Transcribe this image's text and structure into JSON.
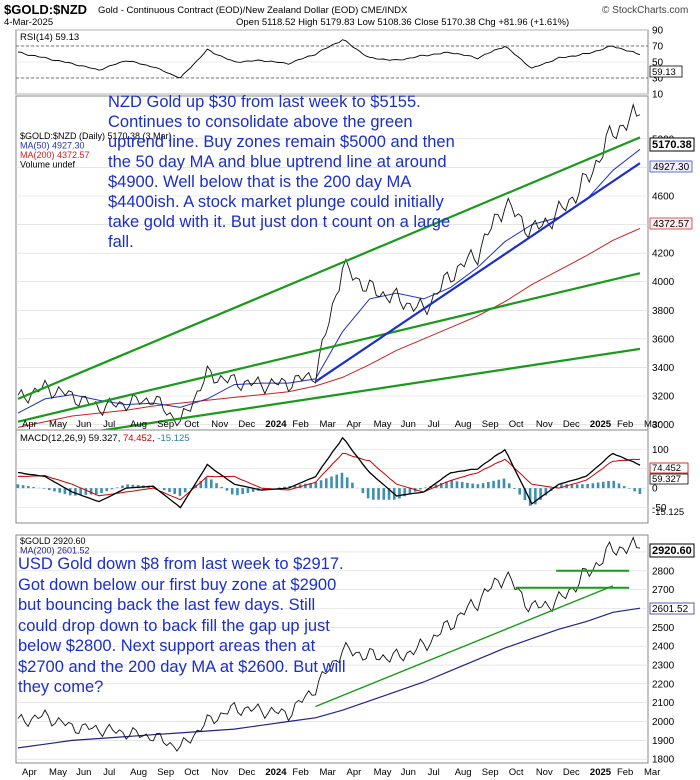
{
  "header": {
    "symbol": "$GOLD:$NZD",
    "description": "Gold - Continuous Contract (EOD)/New Zealand Dollar (EOD)  CME/INDX",
    "date": "4-Mar-2025",
    "watermark": "© StockCharts.com",
    "ohlc_line": "Open 5118.52  High 5179.83  Low 5108.36  Close 5170.38  Chg +81.96 (+1.61%)"
  },
  "rsi": {
    "label": "RSI(14) 59.13",
    "last": 59.13,
    "ticks": [
      "90",
      "70",
      "50",
      "30",
      "10"
    ]
  },
  "nzd": {
    "legend": [
      "$GOLD:$NZD (Daily) 5170.38 (3 Mar)",
      "MA(50) 4927.30",
      "MA(200) 4372.57",
      "Volume undef"
    ],
    "last_label": "5170.38",
    "ma50_label": "4927.30",
    "ma200_label": "4372.57",
    "ticks": [
      "5000",
      "4800",
      "4600",
      "4400",
      "4200",
      "4000",
      "3800",
      "3600",
      "3400",
      "3200",
      "3000"
    ],
    "annotation": "NZD Gold up $30 from last week to $5155. Continues to consolidate above the green uptrend line. Buy zones remain $5000 and then the 50 day MA and blue uptrend line at around $4900. Well below that is the 200 day MA $4400ish. A stock market plunge could initially take gold with it. But just don t count on a large fall."
  },
  "macd": {
    "label": "MACD(12,26,9) 59.327, 74.452, -15.125",
    "label_parts": [
      "MACD(12,26,9) 59.327, ",
      "74.452",
      ", ",
      "-15.125"
    ],
    "ticks": [
      "100",
      "50",
      "0",
      "-50"
    ],
    "values": [
      "74.452",
      "59.327",
      "-15.125"
    ]
  },
  "usd": {
    "legend": [
      "$GOLD 2920.60",
      "MA(200) 2601.52"
    ],
    "last_label": "2920.60",
    "ma200_label": "2601.52",
    "ticks": [
      "2900",
      "2800",
      "2700",
      "2600",
      "2500",
      "2400",
      "2300",
      "2200",
      "2100",
      "2000",
      "1900",
      "1800"
    ],
    "annotation": "USD Gold down $8 from last week to $2917. Got down below our first buy zone at $2900 but bouncing back the last few days. Still could drop down to back fill the gap up just below $2800. Next support areas then at $2700 and the 200 day MA at $2600. But will they come?"
  },
  "x_axis_top": [
    "Apr",
    "May",
    "Jun",
    "Jul",
    "Aug",
    "Sep",
    "Oct",
    "Nov",
    "Dec",
    "2024",
    "Feb",
    "Mar",
    "Apr",
    "May",
    "Jun",
    "Jul",
    "Aug",
    "Sep",
    "Oct",
    "Nov",
    "Dec",
    "2025",
    "Feb",
    "Mar"
  ],
  "x_axis_bottom": [
    "Apr",
    "May",
    "Jun",
    "Jul",
    "Aug",
    "Sep",
    "Oct",
    "Nov",
    "Dec",
    "2024",
    "Feb",
    "Mar",
    "Apr",
    "May",
    "Jun",
    "Jul",
    "Aug",
    "Sep",
    "Oct",
    "Nov",
    "Dec",
    "2025",
    "Feb",
    "Mar"
  ],
  "chart_data": [
    {
      "type": "line",
      "title": "$GOLD:$NZD (Daily)",
      "x": [
        "Apr 2023",
        "May",
        "Jun",
        "Jul",
        "Aug",
        "Sep",
        "Oct",
        "Nov",
        "Dec",
        "2024",
        "Feb",
        "Mar",
        "Apr",
        "May",
        "Jun",
        "Jul",
        "Aug",
        "Sep",
        "Oct",
        "Nov",
        "Dec",
        "2025",
        "Feb",
        "Mar"
      ],
      "series": [
        {
          "name": "$GOLD:$NZD",
          "values": [
            3180,
            3260,
            3200,
            3120,
            3150,
            3180,
            3010,
            3350,
            3300,
            3280,
            3290,
            3350,
            4100,
            3950,
            3880,
            3800,
            4050,
            4200,
            4550,
            4350,
            4480,
            4700,
            5050,
            5170
          ]
        },
        {
          "name": "MA(50)",
          "values": [
            3080,
            3180,
            3210,
            3170,
            3140,
            3150,
            3120,
            3180,
            3280,
            3290,
            3290,
            3320,
            3650,
            3880,
            3920,
            3880,
            3960,
            4100,
            4280,
            4400,
            4450,
            4570,
            4780,
            4927
          ]
        },
        {
          "name": "MA(200)",
          "values": [
            2980,
            3020,
            3060,
            3080,
            3100,
            3130,
            3150,
            3170,
            3190,
            3210,
            3230,
            3270,
            3330,
            3420,
            3520,
            3600,
            3680,
            3760,
            3860,
            3980,
            4080,
            4180,
            4290,
            4373
          ]
        }
      ],
      "ylim": [
        2920,
        5300
      ],
      "trend_lines": [
        {
          "color": "green",
          "from": [
            "Apr 2023",
            3180
          ],
          "to": [
            "Mar 2025",
            5010
          ]
        },
        {
          "color": "green",
          "from": [
            "Apr 2023",
            3020
          ],
          "to": [
            "Mar 2025",
            4060
          ]
        },
        {
          "color": "green",
          "from": [
            "Apr 2023",
            2870
          ],
          "to": [
            "Mar 2025",
            3530
          ]
        },
        {
          "color": "blue",
          "from": [
            "Mar 2024",
            3300
          ],
          "to": [
            "Mar 2025",
            4830
          ]
        }
      ]
    },
    {
      "type": "line",
      "title": "RSI(14)",
      "x": [
        "Apr 2023",
        "May",
        "Jun",
        "Jul",
        "Aug",
        "Sep",
        "Oct",
        "Nov",
        "Dec",
        "2024",
        "Feb",
        "Mar",
        "Apr",
        "May",
        "Jun",
        "Jul",
        "Aug",
        "Sep",
        "Oct",
        "Nov",
        "Dec",
        "2025",
        "Feb",
        "Mar"
      ],
      "series": [
        {
          "name": "RSI(14)",
          "values": [
            62,
            55,
            48,
            40,
            52,
            44,
            30,
            65,
            50,
            52,
            48,
            60,
            78,
            55,
            52,
            58,
            62,
            55,
            70,
            42,
            55,
            60,
            70,
            59.13
          ]
        }
      ],
      "ylim": [
        10,
        90
      ]
    },
    {
      "type": "line",
      "title": "MACD(12,26,9)",
      "x": [
        "Apr 2023",
        "May",
        "Jun",
        "Jul",
        "Aug",
        "Sep",
        "Oct",
        "Nov",
        "Dec",
        "2024",
        "Feb",
        "Mar",
        "Apr",
        "May",
        "Jun",
        "Jul",
        "Aug",
        "Sep",
        "Oct",
        "Nov",
        "Dec",
        "2025",
        "Feb",
        "Mar"
      ],
      "series": [
        {
          "name": "MACD",
          "values": [
            40,
            30,
            -10,
            -35,
            0,
            5,
            -50,
            60,
            10,
            -5,
            0,
            30,
            130,
            40,
            -20,
            -10,
            40,
            50,
            100,
            -40,
            10,
            30,
            90,
            59.327
          ]
        },
        {
          "name": "Signal",
          "values": [
            30,
            32,
            10,
            -20,
            -10,
            0,
            -30,
            30,
            30,
            0,
            -5,
            15,
            90,
            70,
            10,
            -10,
            20,
            40,
            75,
            10,
            0,
            20,
            70,
            74.452
          ]
        },
        {
          "name": "Histogram",
          "values": [
            10,
            -2,
            -20,
            -15,
            10,
            5,
            -20,
            30,
            -20,
            -5,
            5,
            15,
            40,
            -30,
            -30,
            0,
            20,
            10,
            25,
            -50,
            10,
            10,
            20,
            -15.125
          ]
        }
      ],
      "ylim": [
        -90,
        150
      ]
    },
    {
      "type": "line",
      "title": "$GOLD",
      "x": [
        "Apr 2023",
        "May",
        "Jun",
        "Jul",
        "Aug",
        "Sep",
        "Oct",
        "Nov",
        "Dec",
        "2024",
        "Feb",
        "Mar",
        "Apr",
        "May",
        "Jun",
        "Jul",
        "Aug",
        "Sep",
        "Oct",
        "Nov",
        "Dec",
        "2025",
        "Feb",
        "Mar"
      ],
      "series": [
        {
          "name": "$GOLD",
          "values": [
            2000,
            2030,
            1970,
            1960,
            1940,
            1920,
            1860,
            2000,
            2070,
            2060,
            2040,
            2180,
            2380,
            2350,
            2340,
            2400,
            2520,
            2640,
            2780,
            2600,
            2640,
            2780,
            2920,
            2920.6
          ]
        },
        {
          "name": "MA(200)",
          "values": [
            1860,
            1880,
            1900,
            1910,
            1920,
            1930,
            1940,
            1950,
            1960,
            1980,
            2000,
            2020,
            2060,
            2110,
            2160,
            2210,
            2270,
            2330,
            2390,
            2440,
            2490,
            2530,
            2580,
            2601.52
          ]
        }
      ],
      "ylim": [
        1780,
        2990
      ],
      "horizontal_lines": [
        2800,
        2710
      ],
      "trend_lines": [
        {
          "color": "green",
          "from": [
            "Mar 2024",
            2080
          ],
          "to": [
            "Feb 2025",
            2720
          ]
        }
      ]
    }
  ]
}
